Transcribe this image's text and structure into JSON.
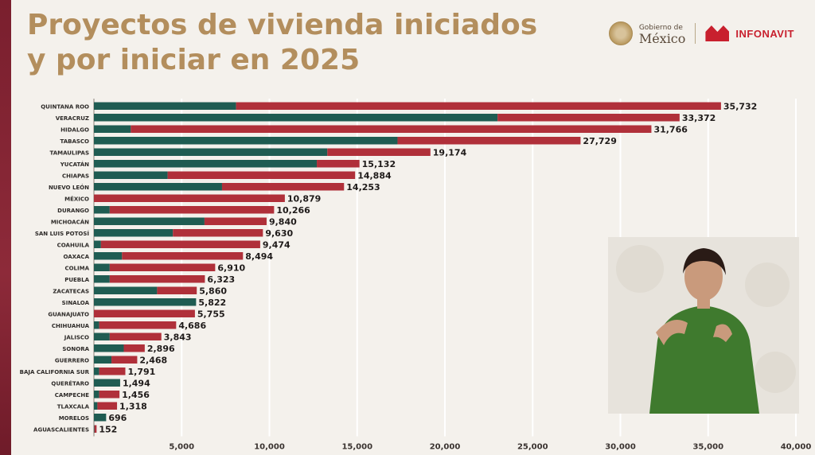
{
  "title": {
    "line1": "Proyectos de vivienda iniciados",
    "line2": "y por iniciar en 2025"
  },
  "logos": {
    "gob_small": "Gobierno de",
    "gob_big": "México",
    "infonavit": "INFONAVIT"
  },
  "colors": {
    "title": "#b38e5d",
    "iniciados": "#1f5c52",
    "por_iniciar": "#b0303a",
    "grid": "#ffffff"
  },
  "chart_data": {
    "type": "bar",
    "orientation": "horizontal",
    "stacked": true,
    "xlim": [
      0,
      40000
    ],
    "xticks": [
      5000,
      10000,
      15000,
      20000,
      25000,
      30000,
      35000,
      40000
    ],
    "xtick_labels": [
      "5,000",
      "10,000",
      "15,000",
      "20,000",
      "25,000",
      "30,000",
      "35,000",
      "40,000"
    ],
    "categories": [
      "QUINTANA ROO",
      "VERACRUZ",
      "HIDALGO",
      "TABASCO",
      "TAMAULIPAS",
      "YUCATÁN",
      "CHIAPAS",
      "NUEVO LEÓN",
      "MÉXICO",
      "DURANGO",
      "MICHOACÁN",
      "SAN LUIS POTOSÍ",
      "COAHUILA",
      "OAXACA",
      "COLIMA",
      "PUEBLA",
      "ZACATECAS",
      "SINALOA",
      "GUANAJUATO",
      "CHIHUAHUA",
      "JALISCO",
      "SONORA",
      "GUERRERO",
      "BAJA CALIFORNIA SUR",
      "QUERÉTARO",
      "CAMPECHE",
      "TLAXCALA",
      "MORELOS",
      "AGUASCALIENTES"
    ],
    "series": [
      {
        "values": [
          8100,
          23000,
          2100,
          17300,
          13300,
          12700,
          4200,
          7300,
          0,
          900,
          6300,
          4500,
          400,
          1600,
          900,
          900,
          3600,
          5822,
          0,
          300,
          900,
          1700,
          1000,
          300,
          1494,
          300,
          200,
          696,
          30
        ]
      },
      {
        "values": [
          27632,
          10372,
          29666,
          10429,
          5874,
          2432,
          10684,
          6953,
          10879,
          9366,
          3540,
          5130,
          9074,
          6894,
          6010,
          5423,
          2260,
          0,
          5755,
          4386,
          2943,
          1196,
          1468,
          1491,
          0,
          1156,
          1118,
          0,
          122
        ]
      }
    ],
    "totals": [
      35732,
      33372,
      31766,
      27729,
      19174,
      15132,
      14884,
      14253,
      10879,
      10266,
      9840,
      9630,
      9474,
      8494,
      6910,
      6323,
      5860,
      5822,
      5755,
      4686,
      3843,
      2896,
      2468,
      1791,
      1494,
      1456,
      1318,
      696,
      152
    ],
    "total_labels": [
      "35,732",
      "33,372",
      "31,766",
      "27,729",
      "19,174",
      "15,132",
      "14,884",
      "14,253",
      "10,879",
      "10,266",
      "9,840",
      "9,630",
      "9,474",
      "8,494",
      "6,910",
      "6,323",
      "5,860",
      "5,822",
      "5,755",
      "4,686",
      "3,843",
      "2,896",
      "2,468",
      "1,791",
      "1,494",
      "1,456",
      "1,318",
      "696",
      "152"
    ]
  }
}
